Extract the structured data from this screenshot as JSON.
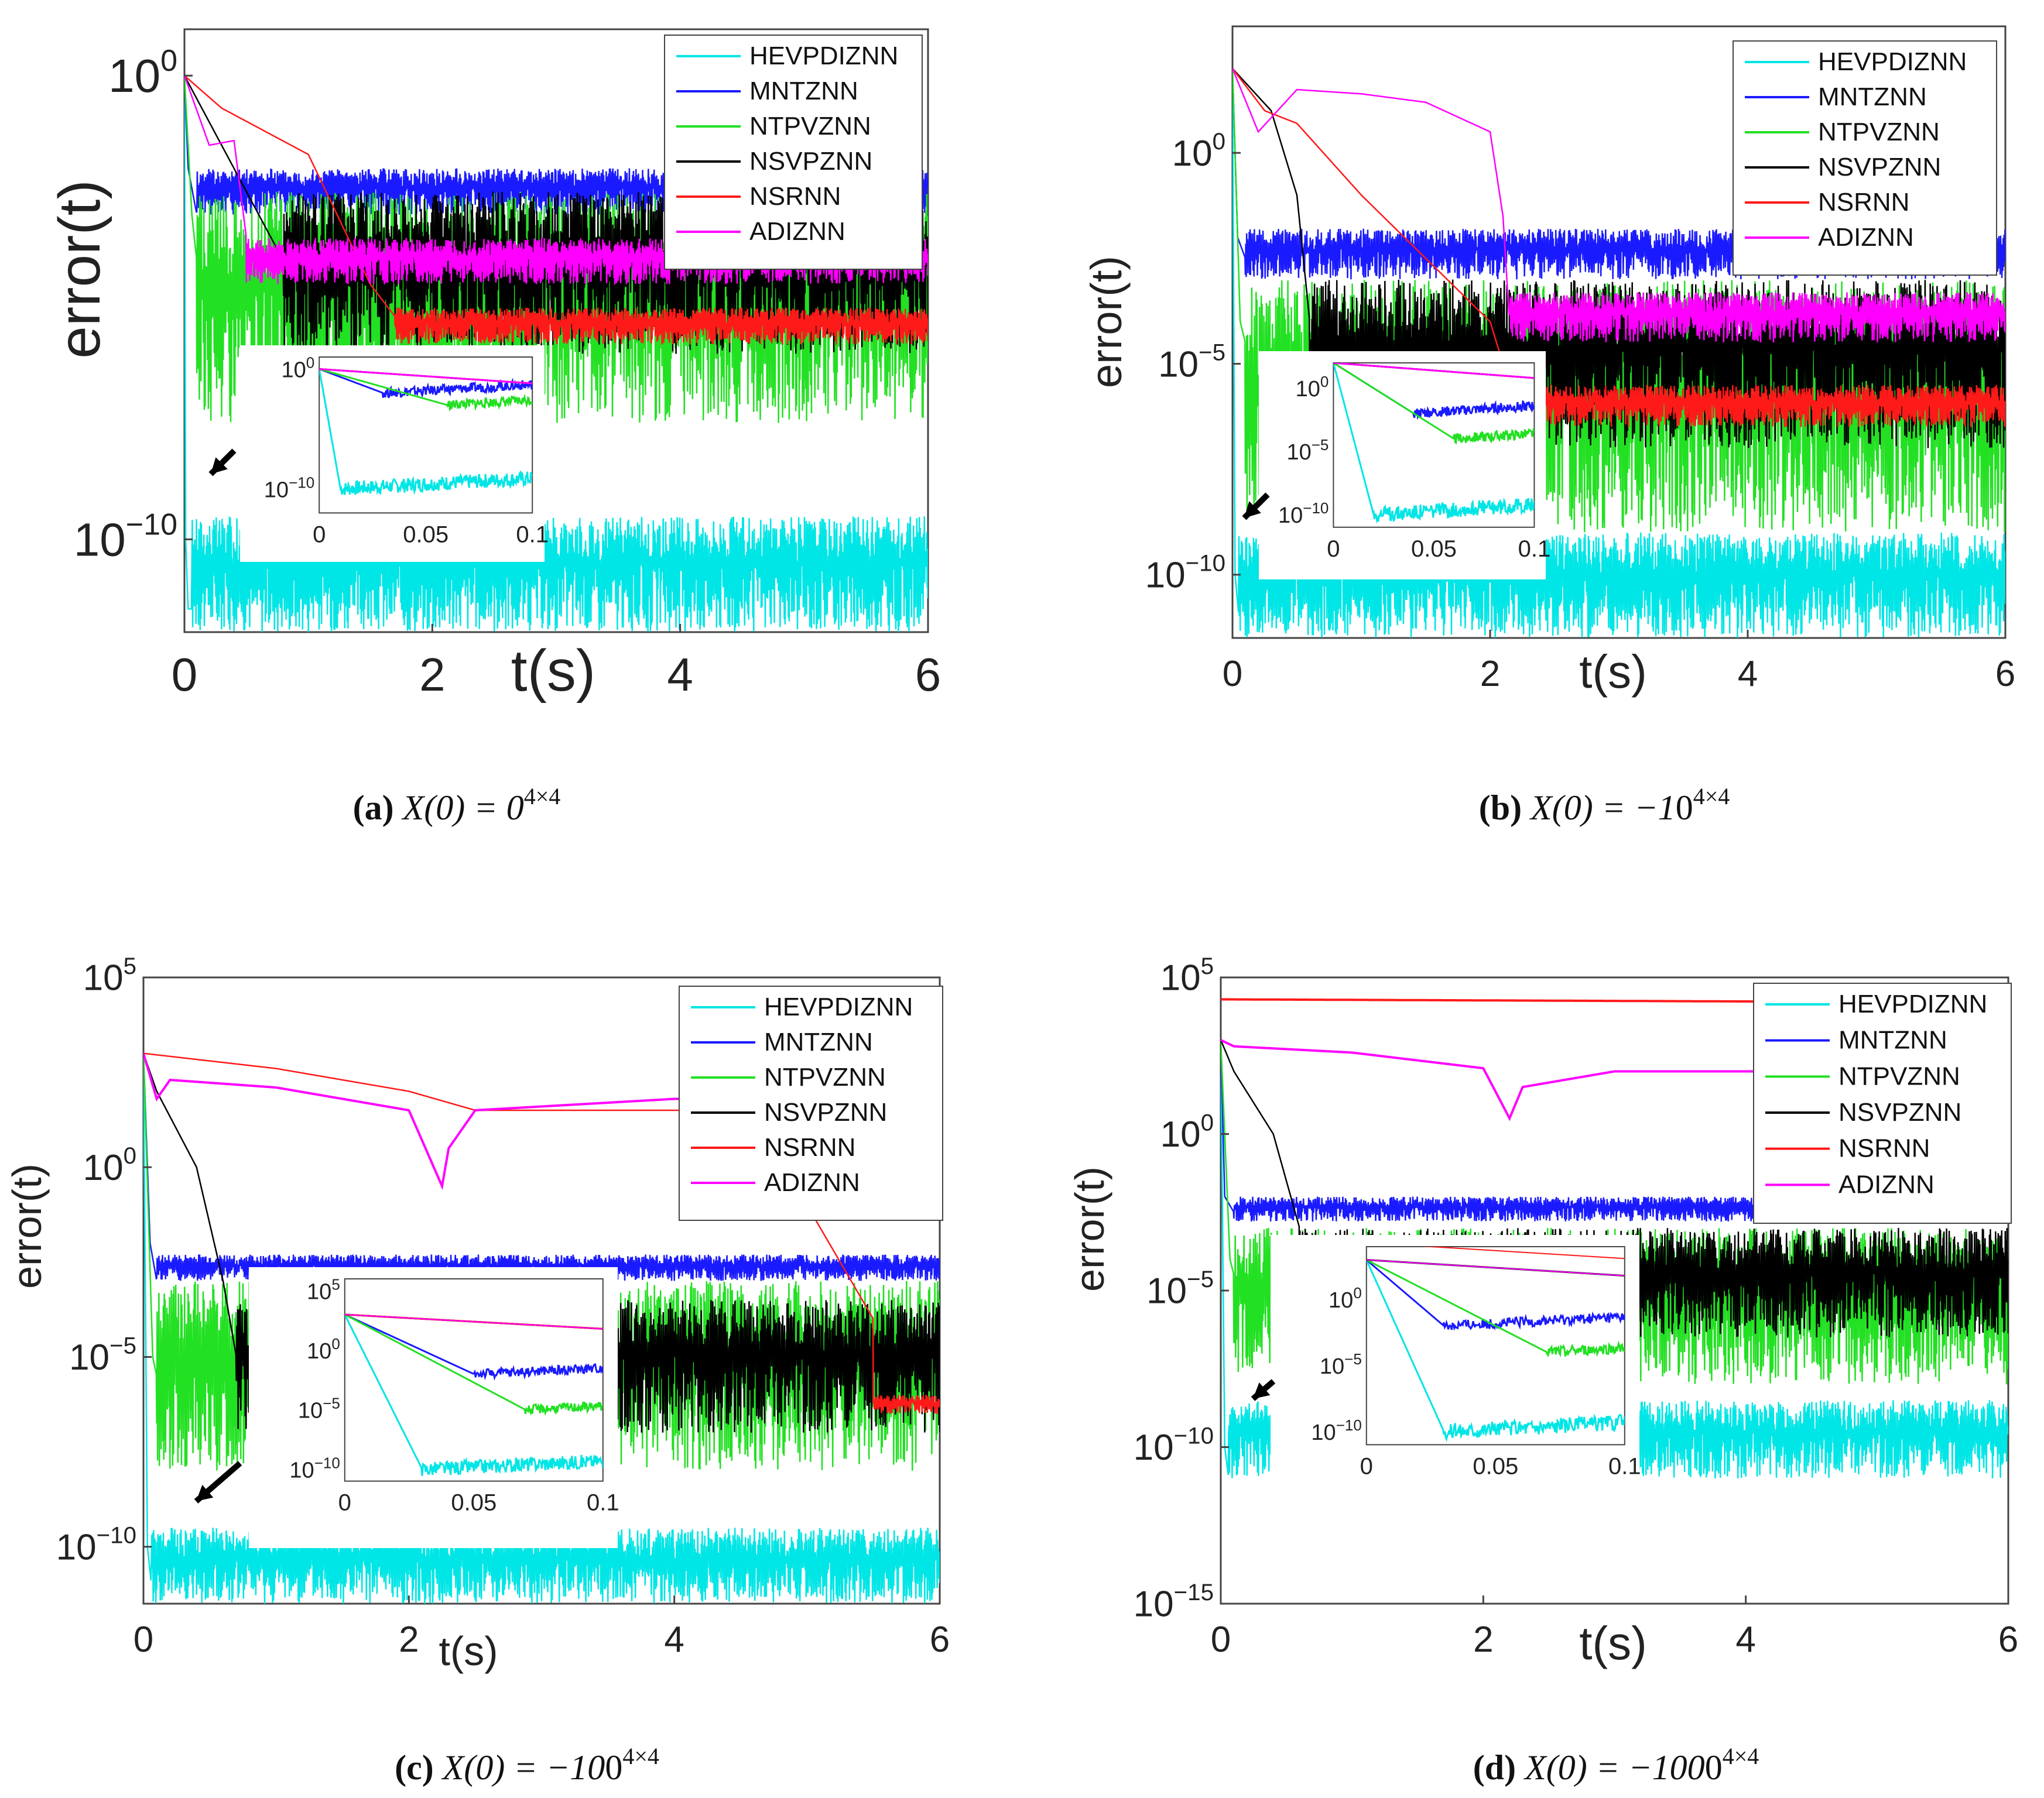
{
  "colors": {
    "HEVPDIZNN": "#00e5e5",
    "MNTZNN": "#1a1aff",
    "NTPVZNN": "#22e022",
    "NSVPZNN": "#000000",
    "NSRNN": "#ff1a1a",
    "ADIZNN": "#ff00ff"
  },
  "chart_data": [
    {
      "id": "a",
      "type": "line",
      "yscale": "log",
      "xlabel": "t(s)",
      "ylabel": "error(t)",
      "xlim": [
        0,
        6
      ],
      "ylim_exp": [
        -12,
        1
      ],
      "xticks": [
        "0",
        "2",
        "4",
        "6"
      ],
      "yticks": [
        {
          "exp": 0,
          "label": "0"
        },
        {
          "exp": -10,
          "label": "−10"
        }
      ],
      "caption": {
        "letter": "(a)",
        "expr": "X(0) = 0",
        "sup": "4×4"
      },
      "legend": [
        "HEVPDIZNN",
        "MNTZNN",
        "NTPVZNN",
        "NSVPZNN",
        "NSRNN",
        "ADIZNN"
      ],
      "series": [
        {
          "name": "HEVPDIZNN",
          "x": [
            0,
            0.01,
            0.03,
            0.06,
            6
          ],
          "y_exp": [
            0,
            -10,
            -11.5,
            -11.5,
            -10.5
          ],
          "band": [
            -12,
            -9.5
          ]
        },
        {
          "name": "MNTZNN",
          "x": [
            0,
            0.03,
            0.1,
            6
          ],
          "y_exp": [
            0,
            -2,
            -3,
            -3
          ],
          "band": [
            -3,
            -2
          ]
        },
        {
          "name": "NTPVZNN",
          "x": [
            0,
            0.06,
            0.1,
            6
          ],
          "y_exp": [
            0,
            -3,
            -4,
            -4
          ],
          "band": [
            -7.5,
            -2.5
          ]
        },
        {
          "name": "NSVPZNN",
          "x": [
            0,
            0.4,
            0.8,
            6
          ],
          "y_exp": [
            0,
            -2,
            -4,
            -4
          ],
          "band": [
            -6,
            -2.5
          ]
        },
        {
          "name": "NSRNN",
          "x": [
            0,
            0.3,
            1.0,
            1.5,
            1.7,
            6
          ],
          "y_exp": [
            0,
            -0.7,
            -1.7,
            -4.5,
            -5.2,
            -5.5
          ],
          "band": [
            -5.8,
            -5.0
          ]
        },
        {
          "name": "ADIZNN",
          "x": [
            0,
            0.2,
            0.4,
            0.5,
            6
          ],
          "y_exp": [
            0,
            -1.5,
            -1.4,
            -3.5,
            -3.5
          ],
          "band": [
            -4.5,
            -3.5
          ]
        }
      ],
      "inset": {
        "xlim": [
          0,
          0.1
        ],
        "xticks": [
          "0",
          "0.05",
          "0.1"
        ],
        "yticks": [
          {
            "exp": 0,
            "label": "0"
          },
          {
            "exp": -10,
            "label": "−10"
          }
        ],
        "ylim_exp": [
          -12,
          1
        ]
      }
    },
    {
      "id": "b",
      "type": "line",
      "yscale": "log",
      "xlabel": "t(s)",
      "ylabel": "error(t)",
      "xlim": [
        0,
        6
      ],
      "ylim_exp": [
        -11.5,
        3
      ],
      "xticks": [
        "0",
        "2",
        "4",
        "6"
      ],
      "yticks": [
        {
          "exp": 0,
          "label": "0"
        },
        {
          "exp": -5,
          "label": "−5"
        },
        {
          "exp": -10,
          "label": "−10"
        }
      ],
      "caption": {
        "letter": "(b)",
        "expr": "X(0) = −1",
        "sup": "4×4",
        "base": "0"
      },
      "legend": [
        "HEVPDIZNN",
        "MNTZNN",
        "NTPVZNN",
        "NSVPZNN",
        "NSRNN",
        "ADIZNN"
      ],
      "series": [
        {
          "name": "HEVPDIZNN",
          "x": [
            0,
            0.02,
            0.05,
            6
          ],
          "y_exp": [
            2,
            -10,
            -11,
            -10
          ],
          "band": [
            -11.5,
            -9
          ]
        },
        {
          "name": "MNTZNN",
          "x": [
            0,
            0.04,
            0.1,
            6
          ],
          "y_exp": [
            2,
            -2,
            -2.5,
            -2.5
          ],
          "band": [
            -3,
            -1.8
          ]
        },
        {
          "name": "NTPVZNN",
          "x": [
            0,
            0.06,
            0.1,
            6
          ],
          "y_exp": [
            2,
            -4,
            -4.5,
            -4
          ],
          "band": [
            -9,
            -3
          ]
        },
        {
          "name": "NSVPZNN",
          "x": [
            0,
            0.3,
            0.5,
            0.6,
            6
          ],
          "y_exp": [
            2,
            1,
            -1,
            -4,
            -4
          ],
          "band": [
            -7,
            -3
          ]
        },
        {
          "name": "NSRNN",
          "x": [
            0,
            0.25,
            0.5,
            1.0,
            1.5,
            2.0,
            2.2,
            6
          ],
          "y_exp": [
            2,
            1,
            0.7,
            -1,
            -2.5,
            -4,
            -6,
            -6
          ],
          "band": [
            -6.5,
            -5.5
          ]
        },
        {
          "name": "ADIZNN",
          "x": [
            0,
            0.2,
            0.5,
            1.0,
            1.5,
            2.0,
            2.1,
            2.15,
            6
          ],
          "y_exp": [
            2,
            0.5,
            1.5,
            1.4,
            1.2,
            0.5,
            -1.5,
            -4,
            -4
          ],
          "band": [
            -4.5,
            -3.3
          ]
        }
      ],
      "inset": {
        "xlim": [
          0,
          0.1
        ],
        "xticks": [
          "0",
          "0.05",
          "0.1"
        ],
        "yticks": [
          {
            "exp": 0,
            "label": "0"
          },
          {
            "exp": -5,
            "label": "−5"
          },
          {
            "exp": -10,
            "label": "−10"
          }
        ],
        "ylim_exp": [
          -11,
          2
        ]
      }
    },
    {
      "id": "c",
      "type": "line",
      "yscale": "log",
      "xlabel": "t(s)",
      "ylabel": "error(t)",
      "xlim": [
        0,
        6
      ],
      "ylim_exp": [
        -11.5,
        5
      ],
      "xticks": [
        "0",
        "2",
        "4",
        "6"
      ],
      "yticks": [
        {
          "exp": 5,
          "label": "5"
        },
        {
          "exp": 0,
          "label": "0"
        },
        {
          "exp": -5,
          "label": "−5"
        },
        {
          "exp": -10,
          "label": "−10"
        }
      ],
      "caption": {
        "letter": "(c)",
        "expr": "X(0) = −10",
        "sup": "4×4",
        "base": "0"
      },
      "legend": [
        "HEVPDIZNN",
        "MNTZNN",
        "NTPVZNN",
        "NSVPZNN",
        "NSRNN",
        "ADIZNN"
      ],
      "series": [
        {
          "name": "HEVPDIZNN",
          "x": [
            0,
            0.03,
            0.06,
            6
          ],
          "y_exp": [
            3,
            -10,
            -11,
            -10
          ],
          "band": [
            -11.5,
            -9.5
          ]
        },
        {
          "name": "MNTZNN",
          "x": [
            0,
            0.05,
            0.1,
            6
          ],
          "y_exp": [
            3,
            -2,
            -3,
            -3
          ],
          "band": [
            -3,
            -2.3
          ]
        },
        {
          "name": "NTPVZNN",
          "x": [
            0,
            0.07,
            0.1,
            6
          ],
          "y_exp": [
            3,
            -5,
            -5.5,
            -4.5
          ],
          "band": [
            -8,
            -3
          ]
        },
        {
          "name": "NSVPZNN",
          "x": [
            0,
            0.1,
            0.4,
            0.6,
            0.7,
            6
          ],
          "y_exp": [
            3,
            2,
            0,
            -3,
            -5,
            -5
          ],
          "band": [
            -7,
            -3.5
          ]
        },
        {
          "name": "NSRNN",
          "x": [
            0,
            1.0,
            2.0,
            2.5,
            4.5,
            5.0,
            5.5,
            6
          ],
          "y_exp": [
            3,
            2.6,
            2,
            1.5,
            1.5,
            -1,
            -4,
            -6.3
          ],
          "band": [
            -6.5,
            -6
          ]
        },
        {
          "name": "ADIZNN",
          "x": [
            0,
            0.1,
            0.2,
            1.0,
            2.0,
            2.25,
            2.3,
            2.5,
            4.0,
            4.2
          ],
          "y_exp": [
            3,
            1.8,
            2.3,
            2.1,
            1.5,
            -0.5,
            0.5,
            1.5,
            1.8,
            1.8
          ]
        }
      ],
      "inset": {
        "xlim": [
          0,
          0.1
        ],
        "xticks": [
          "0",
          "0.05",
          "0.1"
        ],
        "yticks": [
          {
            "exp": 5,
            "label": "5"
          },
          {
            "exp": 0,
            "label": "0"
          },
          {
            "exp": -5,
            "label": "−5"
          },
          {
            "exp": -10,
            "label": "−10"
          }
        ],
        "ylim_exp": [
          -11,
          6
        ]
      }
    },
    {
      "id": "d",
      "type": "line",
      "yscale": "log",
      "xlabel": "t(s)",
      "ylabel": "error(t)",
      "xlim": [
        0,
        6
      ],
      "ylim_exp": [
        -15,
        5
      ],
      "xticks": [
        "0",
        "2",
        "4",
        "6"
      ],
      "yticks": [
        {
          "exp": 5,
          "label": "5"
        },
        {
          "exp": 0,
          "label": "0"
        },
        {
          "exp": -5,
          "label": "−5"
        },
        {
          "exp": -10,
          "label": "−10"
        },
        {
          "exp": -15,
          "label": "−15"
        }
      ],
      "caption": {
        "letter": "(d)",
        "expr": "X(0) = −100",
        "sup": "4×4",
        "base": "0"
      },
      "legend": [
        "HEVPDIZNN",
        "MNTZNN",
        "NTPVZNN",
        "NSVPZNN",
        "NSRNN",
        "ADIZNN"
      ],
      "series": [
        {
          "name": "HEVPDIZNN",
          "x": [
            0,
            0.03,
            0.06,
            6
          ],
          "y_exp": [
            3,
            -10,
            -11,
            -10
          ],
          "band": [
            -11,
            -8.5
          ]
        },
        {
          "name": "MNTZNN",
          "x": [
            0,
            0.03,
            0.1,
            6
          ],
          "y_exp": [
            3,
            -2,
            -2.5,
            -2.5
          ],
          "band": [
            -2.8,
            -2
          ]
        },
        {
          "name": "NTPVZNN",
          "x": [
            0,
            0.07,
            0.1,
            6
          ],
          "y_exp": [
            3,
            -4,
            -4.5,
            -4
          ],
          "band": [
            -8,
            -3
          ]
        },
        {
          "name": "NSVPZNN",
          "x": [
            0,
            0.1,
            0.4,
            0.6,
            6
          ],
          "y_exp": [
            3,
            2,
            0,
            -3,
            -4
          ],
          "band": [
            -6.5,
            -3
          ]
        },
        {
          "name": "NSRNN",
          "x": [
            0,
            6
          ],
          "y_exp": [
            4.3,
            4.2
          ]
        },
        {
          "name": "ADIZNN",
          "x": [
            0,
            0.1,
            1.0,
            2.0,
            2.2,
            2.3,
            3.0,
            4.0,
            6
          ],
          "y_exp": [
            3,
            2.8,
            2.6,
            2.1,
            0.5,
            1.5,
            2.0,
            2.0,
            2.0
          ]
        }
      ],
      "inset": {
        "xlim": [
          0,
          0.1
        ],
        "xticks": [
          "0",
          "0.05",
          "0.1"
        ],
        "yticks": [
          {
            "exp": 0,
            "label": "0"
          },
          {
            "exp": -5,
            "label": "−5"
          },
          {
            "exp": -10,
            "label": "−10"
          }
        ],
        "ylim_exp": [
          -11,
          4
        ]
      }
    }
  ]
}
